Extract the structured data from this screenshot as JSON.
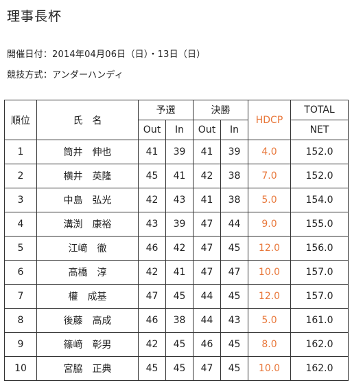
{
  "title": "理事長杯",
  "date_line": "開催日付：2014年04月06日（日）・13日（日）",
  "format_line": "競技方式：アンダーハンディ",
  "headers": {
    "rank": "順位",
    "name": "氏　名",
    "qualifying": "予選",
    "final": "決勝",
    "out": "Out",
    "in": "In",
    "hdcp": "HDCP",
    "total": "TOTAL",
    "net": "NET"
  },
  "colors": {
    "hdcp": "#e8773a",
    "border": "#333333"
  },
  "rows": [
    {
      "rank": "1",
      "name": "筒井　伸也",
      "q_out": "41",
      "q_in": "39",
      "f_out": "41",
      "f_in": "39",
      "hdcp": "4.0",
      "net": "152.0"
    },
    {
      "rank": "2",
      "name": "横井　英隆",
      "q_out": "45",
      "q_in": "41",
      "f_out": "42",
      "f_in": "38",
      "hdcp": "7.0",
      "net": "152.0"
    },
    {
      "rank": "3",
      "name": "中島　弘光",
      "q_out": "42",
      "q_in": "43",
      "f_out": "41",
      "f_in": "38",
      "hdcp": "5.0",
      "net": "154.0"
    },
    {
      "rank": "4",
      "name": "溝渕　康裕",
      "q_out": "43",
      "q_in": "39",
      "f_out": "47",
      "f_in": "44",
      "hdcp": "9.0",
      "net": "155.0"
    },
    {
      "rank": "5",
      "name": "江﨑　徹",
      "q_out": "46",
      "q_in": "42",
      "f_out": "47",
      "f_in": "45",
      "hdcp": "12.0",
      "net": "156.0"
    },
    {
      "rank": "6",
      "name": "髙橋　淳",
      "q_out": "42",
      "q_in": "41",
      "f_out": "47",
      "f_in": "47",
      "hdcp": "10.0",
      "net": "157.0"
    },
    {
      "rank": "7",
      "name": "權　成基",
      "q_out": "47",
      "q_in": "45",
      "f_out": "44",
      "f_in": "45",
      "hdcp": "12.0",
      "net": "157.0"
    },
    {
      "rank": "8",
      "name": "後藤　高成",
      "q_out": "46",
      "q_in": "38",
      "f_out": "44",
      "f_in": "43",
      "hdcp": "5.0",
      "net": "161.0"
    },
    {
      "rank": "9",
      "name": "篠﨑　彰男",
      "q_out": "42",
      "q_in": "45",
      "f_out": "46",
      "f_in": "45",
      "hdcp": "8.0",
      "net": "162.0"
    },
    {
      "rank": "10",
      "name": "宮脇　正典",
      "q_out": "45",
      "q_in": "45",
      "f_out": "47",
      "f_in": "45",
      "hdcp": "10.0",
      "net": "162.0"
    }
  ]
}
